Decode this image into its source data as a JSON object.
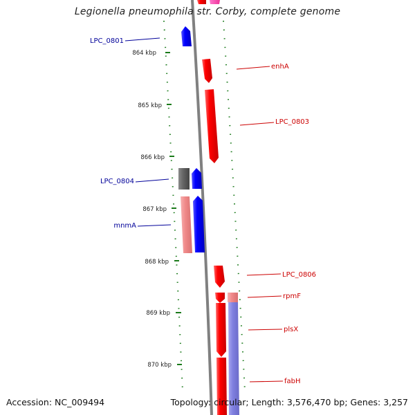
{
  "title": "Legionella pneumophila str. Corby, complete genome",
  "accession": "Accession: NC_009494",
  "topology": "Topology: circular; Length: 3,576,470 bp; Genes: 3,257",
  "colors": {
    "forward_gene": "#ff0000",
    "forward_gene_light": "#f08a8a",
    "reverse_gene": "#0000ff",
    "reverse_gene_light": "#8080e0",
    "other_gene": "#666666",
    "backbone": "#808080",
    "tick": "#1a7a1a",
    "forward_label": "#cc0000",
    "reverse_label": "#000099"
  },
  "ticks": [
    {
      "label": "864 kbp"
    },
    {
      "label": "865 kbp"
    },
    {
      "label": "866 kbp"
    },
    {
      "label": "867 kbp"
    },
    {
      "label": "868 kbp"
    },
    {
      "label": "869 kbp"
    },
    {
      "label": "870 kbp"
    }
  ],
  "genes": [
    {
      "name": "LPC_0801",
      "strand": "reverse"
    },
    {
      "name": "enhA",
      "strand": "forward"
    },
    {
      "name": "LPC_0803",
      "strand": "forward"
    },
    {
      "name": "LPC_0804",
      "strand": "reverse"
    },
    {
      "name": "mnmA",
      "strand": "reverse"
    },
    {
      "name": "LPC_0806",
      "strand": "forward"
    },
    {
      "name": "rpmF",
      "strand": "forward"
    },
    {
      "name": "plsX",
      "strand": "forward"
    },
    {
      "name": "fabH",
      "strand": "forward"
    }
  ]
}
